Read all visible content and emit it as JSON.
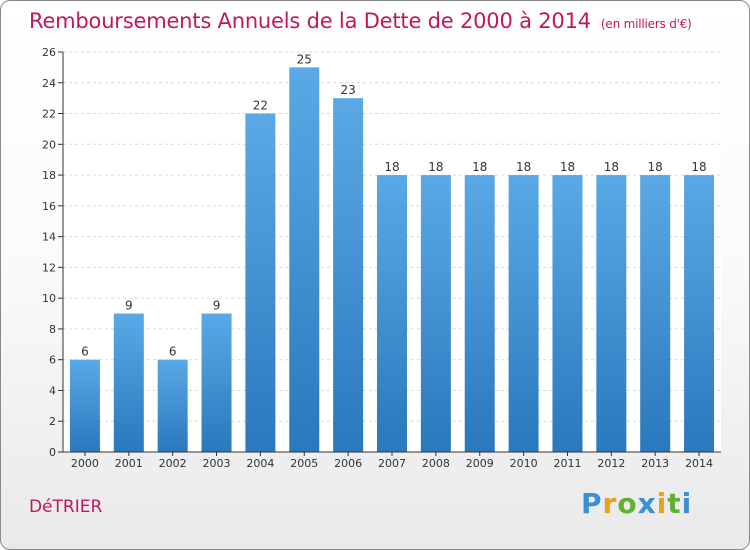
{
  "title": "Remboursements Annuels de la Dette de 2000 à 2014",
  "unit": "(en milliers d'€)",
  "commune": "DéTRIER",
  "logo": {
    "text": "Proxiti",
    "letters": [
      {
        "ch": "P",
        "color": "#3b8ed8"
      },
      {
        "ch": "r",
        "color": "#e8a21a"
      },
      {
        "ch": "o",
        "color": "#62b031"
      },
      {
        "ch": "x",
        "color": "#3b8ed8"
      },
      {
        "ch": "i",
        "color": "#e8a21a"
      },
      {
        "ch": "t",
        "color": "#62b031"
      },
      {
        "ch": "i",
        "color": "#3b8ed8"
      }
    ]
  },
  "colors": {
    "bar_top": "#5aa9e6",
    "bar_bottom": "#2a78bd",
    "title": "#c2185b",
    "grid": "#d9d9d9"
  },
  "chart_data": {
    "type": "bar",
    "title": "Remboursements Annuels de la Dette de 2000 à 2014",
    "categories": [
      "2000",
      "2001",
      "2002",
      "2003",
      "2004",
      "2005",
      "2006",
      "2007",
      "2008",
      "2009",
      "2010",
      "2011",
      "2012",
      "2013",
      "2014"
    ],
    "values": [
      6,
      9,
      6,
      9,
      22,
      25,
      23,
      18,
      18,
      18,
      18,
      18,
      18,
      18,
      18
    ],
    "ylim": [
      0,
      26
    ],
    "yticks": [
      0,
      2,
      4,
      6,
      8,
      10,
      12,
      14,
      16,
      18,
      20,
      22,
      24,
      26
    ],
    "grid": true,
    "data_labels": true
  }
}
